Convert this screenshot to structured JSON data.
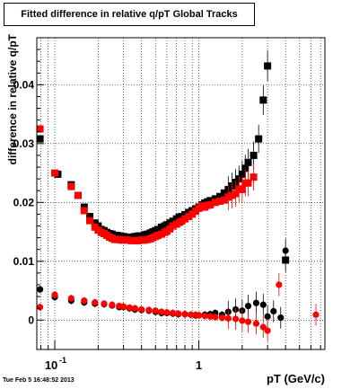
{
  "chart_data": {
    "type": "scatter",
    "title": "Fitted difference in relative q/pT  Global Tracks",
    "xlabel": "pT (GeV/c)",
    "ylabel": "difference in relative q/pT",
    "x_scale": "log",
    "xlim": [
      0.075,
      7.5
    ],
    "ylim": [
      -0.005,
      0.048
    ],
    "grid": true,
    "x_tick_labels": [
      {
        "value": 0.1,
        "base": "10",
        "exp": "-1"
      },
      {
        "value": 1,
        "text": "1"
      }
    ],
    "y_ticks": [
      0,
      0.01,
      0.02,
      0.03,
      0.04
    ],
    "y_tick_labels": [
      "0",
      "0.01",
      "0.02",
      "0.03",
      "0.04"
    ],
    "series": [
      {
        "marker": "square",
        "color": "#000000",
        "x": [
          0.079,
          0.105,
          0.13,
          0.145,
          0.16,
          0.175,
          0.19,
          0.2,
          0.21,
          0.22,
          0.23,
          0.24,
          0.25,
          0.26,
          0.27,
          0.28,
          0.29,
          0.3,
          0.32,
          0.34,
          0.36,
          0.38,
          0.4,
          0.42,
          0.44,
          0.46,
          0.48,
          0.5,
          0.52,
          0.55,
          0.58,
          0.6,
          0.63,
          0.66,
          0.7,
          0.73,
          0.76,
          0.8,
          0.85,
          0.9,
          0.95,
          1.0,
          1.05,
          1.1,
          1.15,
          1.2,
          1.3,
          1.4,
          1.5,
          1.6,
          1.7,
          1.8,
          1.9,
          2.0,
          2.1,
          2.2,
          2.4,
          2.6,
          2.8,
          3.0,
          4.0
        ],
        "y": [
          0.0308,
          0.0248,
          0.023,
          0.0212,
          0.0192,
          0.0176,
          0.0165,
          0.016,
          0.0154,
          0.0152,
          0.0149,
          0.0147,
          0.0146,
          0.0144,
          0.0144,
          0.0143,
          0.0142,
          0.0142,
          0.0141,
          0.0141,
          0.0142,
          0.0143,
          0.0143,
          0.0145,
          0.0146,
          0.0148,
          0.015,
          0.0152,
          0.0154,
          0.0158,
          0.016,
          0.0162,
          0.0165,
          0.0168,
          0.0172,
          0.0175,
          0.0176,
          0.0179,
          0.0183,
          0.0186,
          0.0189,
          0.0192,
          0.0196,
          0.0199,
          0.0201,
          0.0203,
          0.0206,
          0.021,
          0.0216,
          0.0222,
          0.0228,
          0.0234,
          0.024,
          0.0248,
          0.0258,
          0.0268,
          0.028,
          0.0308,
          0.0374,
          0.0432,
          0.0102
        ]
      },
      {
        "marker": "square",
        "color": "#ff0000",
        "x": [
          0.079,
          0.1,
          0.13,
          0.145,
          0.16,
          0.175,
          0.19,
          0.2,
          0.21,
          0.22,
          0.23,
          0.24,
          0.25,
          0.26,
          0.27,
          0.28,
          0.29,
          0.3,
          0.32,
          0.34,
          0.36,
          0.38,
          0.4,
          0.42,
          0.44,
          0.46,
          0.48,
          0.5,
          0.52,
          0.55,
          0.58,
          0.6,
          0.63,
          0.66,
          0.7,
          0.73,
          0.76,
          0.8,
          0.85,
          0.9,
          0.95,
          1.0,
          1.05,
          1.1,
          1.15,
          1.2,
          1.3,
          1.4,
          1.5,
          1.6,
          1.7,
          1.8,
          1.9,
          2.0,
          2.1,
          2.2,
          2.4
        ],
        "y": [
          0.0325,
          0.025,
          0.0227,
          0.0212,
          0.0186,
          0.0169,
          0.0158,
          0.0153,
          0.0149,
          0.0147,
          0.0144,
          0.0141,
          0.0139,
          0.0137,
          0.0137,
          0.0137,
          0.0136,
          0.0136,
          0.0136,
          0.0135,
          0.0135,
          0.0135,
          0.0136,
          0.0136,
          0.0137,
          0.0138,
          0.014,
          0.0142,
          0.0144,
          0.0146,
          0.0149,
          0.0151,
          0.0155,
          0.016,
          0.0163,
          0.0166,
          0.0168,
          0.0172,
          0.0176,
          0.018,
          0.0185,
          0.019,
          0.0194,
          0.0192,
          0.0195,
          0.0196,
          0.02,
          0.0202,
          0.0204,
          0.0209,
          0.0212,
          0.0215,
          0.0223,
          0.0222,
          0.0233,
          0.0233,
          0.0243
        ]
      },
      {
        "marker": "circle",
        "color": "#000000",
        "x": [
          0.079,
          0.1,
          0.13,
          0.16,
          0.19,
          0.22,
          0.25,
          0.28,
          0.3,
          0.33,
          0.36,
          0.4,
          0.45,
          0.5,
          0.55,
          0.6,
          0.66,
          0.72,
          0.8,
          0.88,
          0.95,
          1.0,
          1.1,
          1.2,
          1.3,
          1.45,
          1.6,
          1.8,
          2.0,
          2.2,
          2.5,
          2.8,
          3.0,
          3.3,
          3.7,
          4.0
        ],
        "y": [
          0.0052,
          0.0039,
          0.0033,
          0.003,
          0.0028,
          0.0027,
          0.0025,
          0.0022,
          0.0022,
          0.002,
          0.0018,
          0.0017,
          0.0016,
          0.0014,
          0.0012,
          0.0012,
          0.0011,
          0.001,
          0.001,
          0.0009,
          0.0008,
          0.0008,
          0.0009,
          0.001,
          0.0012,
          0.0009,
          0.0014,
          0.0018,
          0.0016,
          0.0024,
          0.0029,
          0.0026,
          0.0006,
          0.0015,
          0.0004,
          0.0118
        ]
      },
      {
        "marker": "circle",
        "color": "#ff0000",
        "x": [
          0.079,
          0.1,
          0.13,
          0.16,
          0.19,
          0.22,
          0.25,
          0.28,
          0.3,
          0.33,
          0.36,
          0.4,
          0.45,
          0.5,
          0.55,
          0.6,
          0.66,
          0.72,
          0.8,
          0.88,
          0.95,
          1.0,
          1.1,
          1.2,
          1.3,
          1.45,
          1.6,
          1.8,
          2.0,
          2.2,
          2.5,
          2.8,
          3.0,
          3.6,
          6.5
        ],
        "y": [
          0.0022,
          0.0043,
          0.0037,
          0.0033,
          0.003,
          0.0028,
          0.0026,
          0.0024,
          0.0023,
          0.0021,
          0.002,
          0.0018,
          0.0017,
          0.0016,
          0.0014,
          0.0013,
          0.0012,
          0.0011,
          0.001,
          0.0009,
          0.0009,
          0.0008,
          0.0007,
          0.0006,
          0.0005,
          0.0004,
          0.0003,
          0.0002,
          -0.0001,
          -0.0003,
          -0.0006,
          -0.0012,
          -0.0018,
          0.006,
          0.0009
        ]
      }
    ]
  },
  "footer": {
    "timestamp": "Tue Feb  5 16:48:52 2013"
  }
}
